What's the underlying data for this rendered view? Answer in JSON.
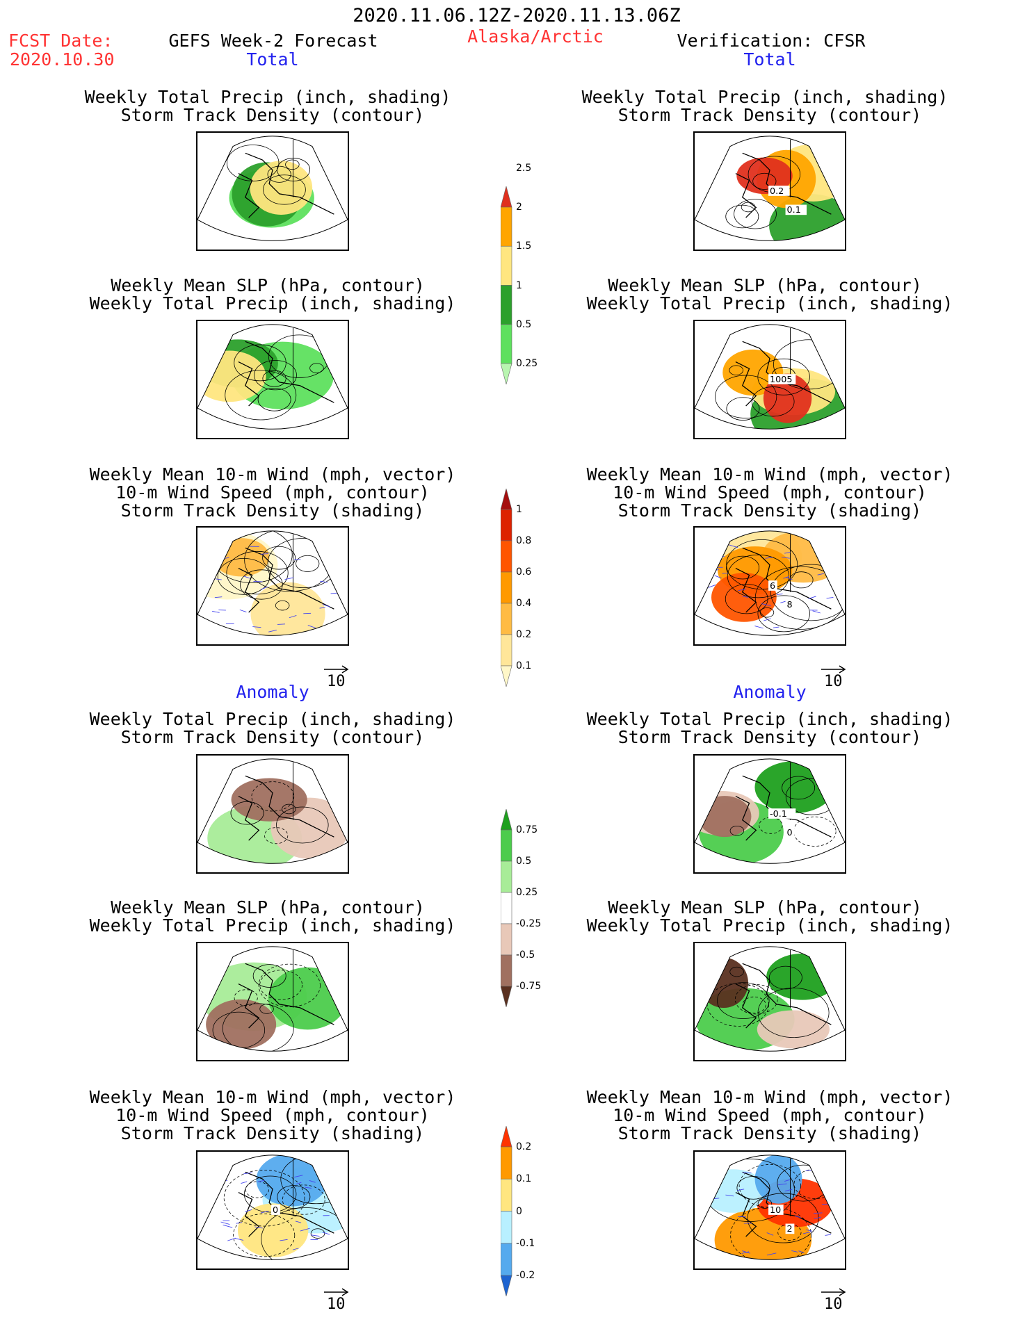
{
  "header": {
    "period": "2020.11.06.12Z-2020.11.13.06Z",
    "fcst_label": "FCST Date:",
    "fcst_date": "2020.10.30",
    "model": "GEFS Week-2 Forecast",
    "region": "Alaska/Arctic",
    "verification": "Verification: CFSR"
  },
  "sections": {
    "total": "Total",
    "anomaly": "Anomaly"
  },
  "titles": {
    "precip_storm": [
      "Weekly Total Precip (inch, shading)",
      "Storm Track Density (contour)"
    ],
    "slp_precip": [
      "Weekly Mean SLP (hPa, contour)",
      "Weekly Total Precip (inch, shading)"
    ],
    "wind": [
      "Weekly Mean 10-m Wind (mph, vector)",
      "10-m Wind Speed (mph, contour)",
      "Storm Track Density (shading)"
    ]
  },
  "vector_ref": "10",
  "colorbars": {
    "precip_total": {
      "labels": [
        "2.5",
        "2",
        "1.5",
        "1",
        "0.5",
        "0.25"
      ],
      "colors": [
        "#e0301e",
        "#ffa500",
        "#ffe680",
        "#2ca02c",
        "#5ee05e",
        "#b8f5b0"
      ]
    },
    "storm_total": {
      "labels": [
        "1",
        "0.8",
        "0.6",
        "0.4",
        "0.2",
        "0.1"
      ],
      "colors": [
        "#a50f0f",
        "#dd2200",
        "#ff5500",
        "#ff9900",
        "#ffbb44",
        "#ffe699",
        "#fff7c8"
      ]
    },
    "precip_anom": {
      "labels": [
        "0.75",
        "0.5",
        "0.25",
        "-0.25",
        "-0.5",
        "-0.75"
      ],
      "colors": [
        "#1fa01f",
        "#4ccc4c",
        "#a8ec98",
        "#ffffff",
        "#e8c8b8",
        "#a07060",
        "#5a3020"
      ]
    },
    "storm_anom": {
      "labels": [
        "0.2",
        "0.1",
        "0",
        "-0.1",
        "-0.2"
      ],
      "colors": [
        "#ff3300",
        "#ff9900",
        "#ffe680",
        "#b8f0ff",
        "#55aaee",
        "#1e64d0"
      ]
    }
  },
  "panels": {
    "gefs_total_precip": {
      "labels": []
    },
    "cfsr_total_precip": {
      "labels": [
        "0.2",
        "0.1"
      ]
    },
    "gefs_total_slp": {
      "labels": []
    },
    "cfsr_total_slp": {
      "labels": [
        "1005"
      ]
    },
    "gefs_total_wind": {
      "labels": []
    },
    "cfsr_total_wind": {
      "labels": [
        "6",
        "8"
      ]
    },
    "gefs_anom_precip": {
      "labels": []
    },
    "cfsr_anom_precip": {
      "labels": [
        "-0.1",
        "0"
      ]
    },
    "gefs_anom_slp": {
      "labels": []
    },
    "cfsr_anom_slp": {
      "labels": []
    },
    "gefs_anom_wind": {
      "labels": [
        "0"
      ]
    },
    "cfsr_anom_wind": {
      "labels": [
        "10",
        "2"
      ]
    }
  }
}
